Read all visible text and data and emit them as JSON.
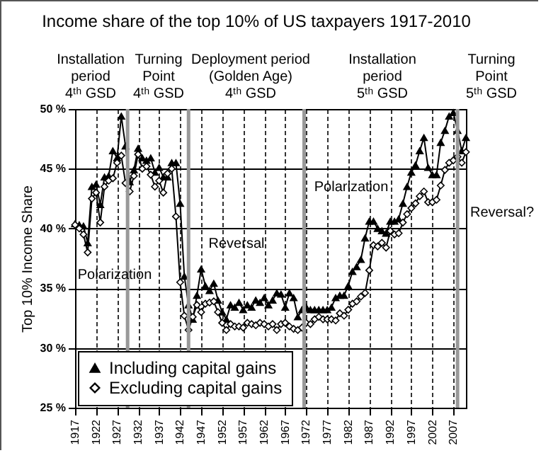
{
  "chart_data": {
    "type": "line",
    "title": "Income share of the top 10% of US taxpayers 1917-2010",
    "ylabel": "Top 10% Income Share",
    "x": [
      1917,
      1918,
      1919,
      1920,
      1921,
      1922,
      1923,
      1924,
      1925,
      1926,
      1927,
      1928,
      1929,
      1930,
      1931,
      1932,
      1933,
      1934,
      1935,
      1936,
      1937,
      1938,
      1939,
      1940,
      1941,
      1942,
      1943,
      1944,
      1945,
      1946,
      1947,
      1948,
      1949,
      1950,
      1951,
      1952,
      1953,
      1954,
      1955,
      1956,
      1957,
      1958,
      1959,
      1960,
      1961,
      1962,
      1963,
      1964,
      1965,
      1966,
      1967,
      1968,
      1969,
      1970,
      1971,
      1972,
      1973,
      1974,
      1975,
      1976,
      1977,
      1978,
      1979,
      1980,
      1981,
      1982,
      1983,
      1984,
      1985,
      1986,
      1987,
      1988,
      1989,
      1990,
      1991,
      1992,
      1993,
      1994,
      1995,
      1996,
      1997,
      1998,
      1999,
      2000,
      2001,
      2002,
      2003,
      2004,
      2005,
      2006,
      2007,
      2008,
      2009,
      2010
    ],
    "series": [
      {
        "name": "Including capital gains",
        "color": "#000000",
        "marker": "triangle",
        "values": [
          40.4,
          40.3,
          40.2,
          38.8,
          43.5,
          43.7,
          42.0,
          44.3,
          44.4,
          46.5,
          45.9,
          49.4,
          46.9,
          43.9,
          44.9,
          46.7,
          45.9,
          45.7,
          45.9,
          44.7,
          45.1,
          44.3,
          44.3,
          45.5,
          45.5,
          42.1,
          36.0,
          33.6,
          32.4,
          34.4,
          36.6,
          35.2,
          34.8,
          35.4,
          34.0,
          33.0,
          32.4,
          33.6,
          33.4,
          33.8,
          33.2,
          33.6,
          33.4,
          34.0,
          33.8,
          34.2,
          33.6,
          34.0,
          34.6,
          34.5,
          33.4,
          34.6,
          34.2,
          32.6,
          33.2,
          33.4,
          33.2,
          33.2,
          33.2,
          33.2,
          33.2,
          33.4,
          34.2,
          34.4,
          34.4,
          35.2,
          36.4,
          36.8,
          37.4,
          39.2,
          40.6,
          40.6,
          40.0,
          39.8,
          39.6,
          40.6,
          40.6,
          40.8,
          42.1,
          43.5,
          44.7,
          45.3,
          46.5,
          47.6,
          45.1,
          44.5,
          44.5,
          47.2,
          48.2,
          49.4,
          49.7,
          48.2,
          46.5,
          47.6
        ]
      },
      {
        "name": "Excluding capital gains",
        "color": "#000000",
        "marker": "diamond",
        "values": [
          40.3,
          40.0,
          39.5,
          38.0,
          42.5,
          43.0,
          40.5,
          43.5,
          44.0,
          44.2,
          45.5,
          46.1,
          43.8,
          43.1,
          44.4,
          46.2,
          45.0,
          45.2,
          44.5,
          43.5,
          44.0,
          43.0,
          44.6,
          45.0,
          41.0,
          35.5,
          32.7,
          31.5,
          32.6,
          33.6,
          33.0,
          33.7,
          33.8,
          33.9,
          33.0,
          32.1,
          31.5,
          32.0,
          31.8,
          31.8,
          31.7,
          32.1,
          32.0,
          31.9,
          32.1,
          32.0,
          31.8,
          32.0,
          31.5,
          32.0,
          32.1,
          31.8,
          31.6,
          31.5,
          31.7,
          32.1,
          32.0,
          32.4,
          32.6,
          32.4,
          32.4,
          32.4,
          32.3,
          32.9,
          32.7,
          33.2,
          33.7,
          33.9,
          34.3,
          34.6,
          36.5,
          38.6,
          38.5,
          38.8,
          38.4,
          39.8,
          39.5,
          39.6,
          40.5,
          41.2,
          41.7,
          42.1,
          42.7,
          43.1,
          42.2,
          42.2,
          42.4,
          43.6,
          44.9,
          45.5,
          45.7,
          46.0,
          45.5,
          46.4
        ]
      }
    ],
    "xlim": [
      1917,
      2010
    ],
    "xticks": [
      1917,
      1922,
      1927,
      1932,
      1937,
      1942,
      1947,
      1952,
      1957,
      1962,
      1967,
      1972,
      1977,
      1982,
      1987,
      1992,
      1997,
      2002,
      2007
    ],
    "ylim": [
      25,
      50
    ],
    "yticks": [
      {
        "value": 25,
        "label": "25 %"
      },
      {
        "value": 30,
        "label": "30 %"
      },
      {
        "value": 35,
        "label": "35 %"
      },
      {
        "value": 40,
        "label": "40 %"
      },
      {
        "value": 45,
        "label": "45 %"
      },
      {
        "value": 50,
        "label": "50 %"
      }
    ],
    "grid": true,
    "legend": "bottom left",
    "line_style": "solid",
    "ref_lines": [
      {
        "axis": "x",
        "value": 1929.5,
        "color": "#999999"
      },
      {
        "axis": "x",
        "value": 1944,
        "color": "#999999"
      },
      {
        "axis": "x",
        "value": 1971.5,
        "color": "#999999"
      },
      {
        "axis": "x",
        "value": 2008,
        "color": "#999999"
      }
    ],
    "annotations": [
      "Installation\nperiod\n4ᵗʰ GSD",
      "Turning\nPoint\n4ᵗʰ GSD",
      "Deployment period\n(Golden Age)\n4ᵗʰ GSD",
      "Installation\nperiod\n5ᵗʰ GSD",
      "Turning\nPoint\n5ᵗʰ GSD",
      "Polarization",
      "Reversal",
      "Polarization",
      "Reversal?"
    ]
  }
}
